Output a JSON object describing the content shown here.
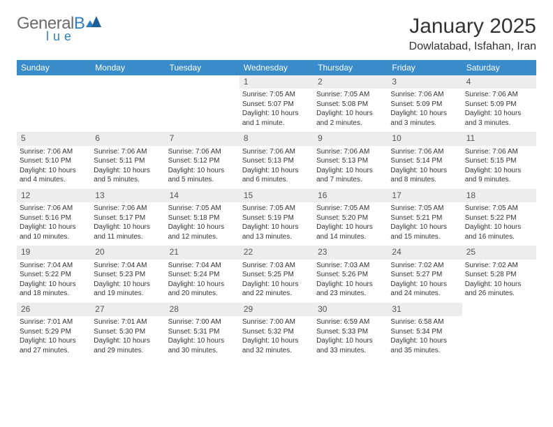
{
  "logo": {
    "text_gray": "General",
    "blue_letter": "B",
    "blue_sub": "lue"
  },
  "title": "January 2025",
  "location": "Dowlatabad, Isfahan, Iran",
  "colors": {
    "header_bg": "#3a8bca",
    "header_text": "#ffffff",
    "week_border": "#2d7fc1",
    "daynum_bg": "#ededed",
    "logo_gray": "#6b6b6b",
    "logo_blue": "#2d7fc1"
  },
  "day_names": [
    "Sunday",
    "Monday",
    "Tuesday",
    "Wednesday",
    "Thursday",
    "Friday",
    "Saturday"
  ],
  "weeks": [
    [
      {
        "n": "",
        "l": [
          "",
          "",
          "",
          ""
        ]
      },
      {
        "n": "",
        "l": [
          "",
          "",
          "",
          ""
        ]
      },
      {
        "n": "",
        "l": [
          "",
          "",
          "",
          ""
        ]
      },
      {
        "n": "1",
        "l": [
          "Sunrise: 7:05 AM",
          "Sunset: 5:07 PM",
          "Daylight: 10 hours",
          "and 1 minute."
        ]
      },
      {
        "n": "2",
        "l": [
          "Sunrise: 7:05 AM",
          "Sunset: 5:08 PM",
          "Daylight: 10 hours",
          "and 2 minutes."
        ]
      },
      {
        "n": "3",
        "l": [
          "Sunrise: 7:06 AM",
          "Sunset: 5:09 PM",
          "Daylight: 10 hours",
          "and 3 minutes."
        ]
      },
      {
        "n": "4",
        "l": [
          "Sunrise: 7:06 AM",
          "Sunset: 5:09 PM",
          "Daylight: 10 hours",
          "and 3 minutes."
        ]
      }
    ],
    [
      {
        "n": "5",
        "l": [
          "Sunrise: 7:06 AM",
          "Sunset: 5:10 PM",
          "Daylight: 10 hours",
          "and 4 minutes."
        ]
      },
      {
        "n": "6",
        "l": [
          "Sunrise: 7:06 AM",
          "Sunset: 5:11 PM",
          "Daylight: 10 hours",
          "and 5 minutes."
        ]
      },
      {
        "n": "7",
        "l": [
          "Sunrise: 7:06 AM",
          "Sunset: 5:12 PM",
          "Daylight: 10 hours",
          "and 5 minutes."
        ]
      },
      {
        "n": "8",
        "l": [
          "Sunrise: 7:06 AM",
          "Sunset: 5:13 PM",
          "Daylight: 10 hours",
          "and 6 minutes."
        ]
      },
      {
        "n": "9",
        "l": [
          "Sunrise: 7:06 AM",
          "Sunset: 5:13 PM",
          "Daylight: 10 hours",
          "and 7 minutes."
        ]
      },
      {
        "n": "10",
        "l": [
          "Sunrise: 7:06 AM",
          "Sunset: 5:14 PM",
          "Daylight: 10 hours",
          "and 8 minutes."
        ]
      },
      {
        "n": "11",
        "l": [
          "Sunrise: 7:06 AM",
          "Sunset: 5:15 PM",
          "Daylight: 10 hours",
          "and 9 minutes."
        ]
      }
    ],
    [
      {
        "n": "12",
        "l": [
          "Sunrise: 7:06 AM",
          "Sunset: 5:16 PM",
          "Daylight: 10 hours",
          "and 10 minutes."
        ]
      },
      {
        "n": "13",
        "l": [
          "Sunrise: 7:06 AM",
          "Sunset: 5:17 PM",
          "Daylight: 10 hours",
          "and 11 minutes."
        ]
      },
      {
        "n": "14",
        "l": [
          "Sunrise: 7:05 AM",
          "Sunset: 5:18 PM",
          "Daylight: 10 hours",
          "and 12 minutes."
        ]
      },
      {
        "n": "15",
        "l": [
          "Sunrise: 7:05 AM",
          "Sunset: 5:19 PM",
          "Daylight: 10 hours",
          "and 13 minutes."
        ]
      },
      {
        "n": "16",
        "l": [
          "Sunrise: 7:05 AM",
          "Sunset: 5:20 PM",
          "Daylight: 10 hours",
          "and 14 minutes."
        ]
      },
      {
        "n": "17",
        "l": [
          "Sunrise: 7:05 AM",
          "Sunset: 5:21 PM",
          "Daylight: 10 hours",
          "and 15 minutes."
        ]
      },
      {
        "n": "18",
        "l": [
          "Sunrise: 7:05 AM",
          "Sunset: 5:22 PM",
          "Daylight: 10 hours",
          "and 16 minutes."
        ]
      }
    ],
    [
      {
        "n": "19",
        "l": [
          "Sunrise: 7:04 AM",
          "Sunset: 5:22 PM",
          "Daylight: 10 hours",
          "and 18 minutes."
        ]
      },
      {
        "n": "20",
        "l": [
          "Sunrise: 7:04 AM",
          "Sunset: 5:23 PM",
          "Daylight: 10 hours",
          "and 19 minutes."
        ]
      },
      {
        "n": "21",
        "l": [
          "Sunrise: 7:04 AM",
          "Sunset: 5:24 PM",
          "Daylight: 10 hours",
          "and 20 minutes."
        ]
      },
      {
        "n": "22",
        "l": [
          "Sunrise: 7:03 AM",
          "Sunset: 5:25 PM",
          "Daylight: 10 hours",
          "and 22 minutes."
        ]
      },
      {
        "n": "23",
        "l": [
          "Sunrise: 7:03 AM",
          "Sunset: 5:26 PM",
          "Daylight: 10 hours",
          "and 23 minutes."
        ]
      },
      {
        "n": "24",
        "l": [
          "Sunrise: 7:02 AM",
          "Sunset: 5:27 PM",
          "Daylight: 10 hours",
          "and 24 minutes."
        ]
      },
      {
        "n": "25",
        "l": [
          "Sunrise: 7:02 AM",
          "Sunset: 5:28 PM",
          "Daylight: 10 hours",
          "and 26 minutes."
        ]
      }
    ],
    [
      {
        "n": "26",
        "l": [
          "Sunrise: 7:01 AM",
          "Sunset: 5:29 PM",
          "Daylight: 10 hours",
          "and 27 minutes."
        ]
      },
      {
        "n": "27",
        "l": [
          "Sunrise: 7:01 AM",
          "Sunset: 5:30 PM",
          "Daylight: 10 hours",
          "and 29 minutes."
        ]
      },
      {
        "n": "28",
        "l": [
          "Sunrise: 7:00 AM",
          "Sunset: 5:31 PM",
          "Daylight: 10 hours",
          "and 30 minutes."
        ]
      },
      {
        "n": "29",
        "l": [
          "Sunrise: 7:00 AM",
          "Sunset: 5:32 PM",
          "Daylight: 10 hours",
          "and 32 minutes."
        ]
      },
      {
        "n": "30",
        "l": [
          "Sunrise: 6:59 AM",
          "Sunset: 5:33 PM",
          "Daylight: 10 hours",
          "and 33 minutes."
        ]
      },
      {
        "n": "31",
        "l": [
          "Sunrise: 6:58 AM",
          "Sunset: 5:34 PM",
          "Daylight: 10 hours",
          "and 35 minutes."
        ]
      },
      {
        "n": "",
        "l": [
          "",
          "",
          "",
          ""
        ]
      }
    ]
  ]
}
